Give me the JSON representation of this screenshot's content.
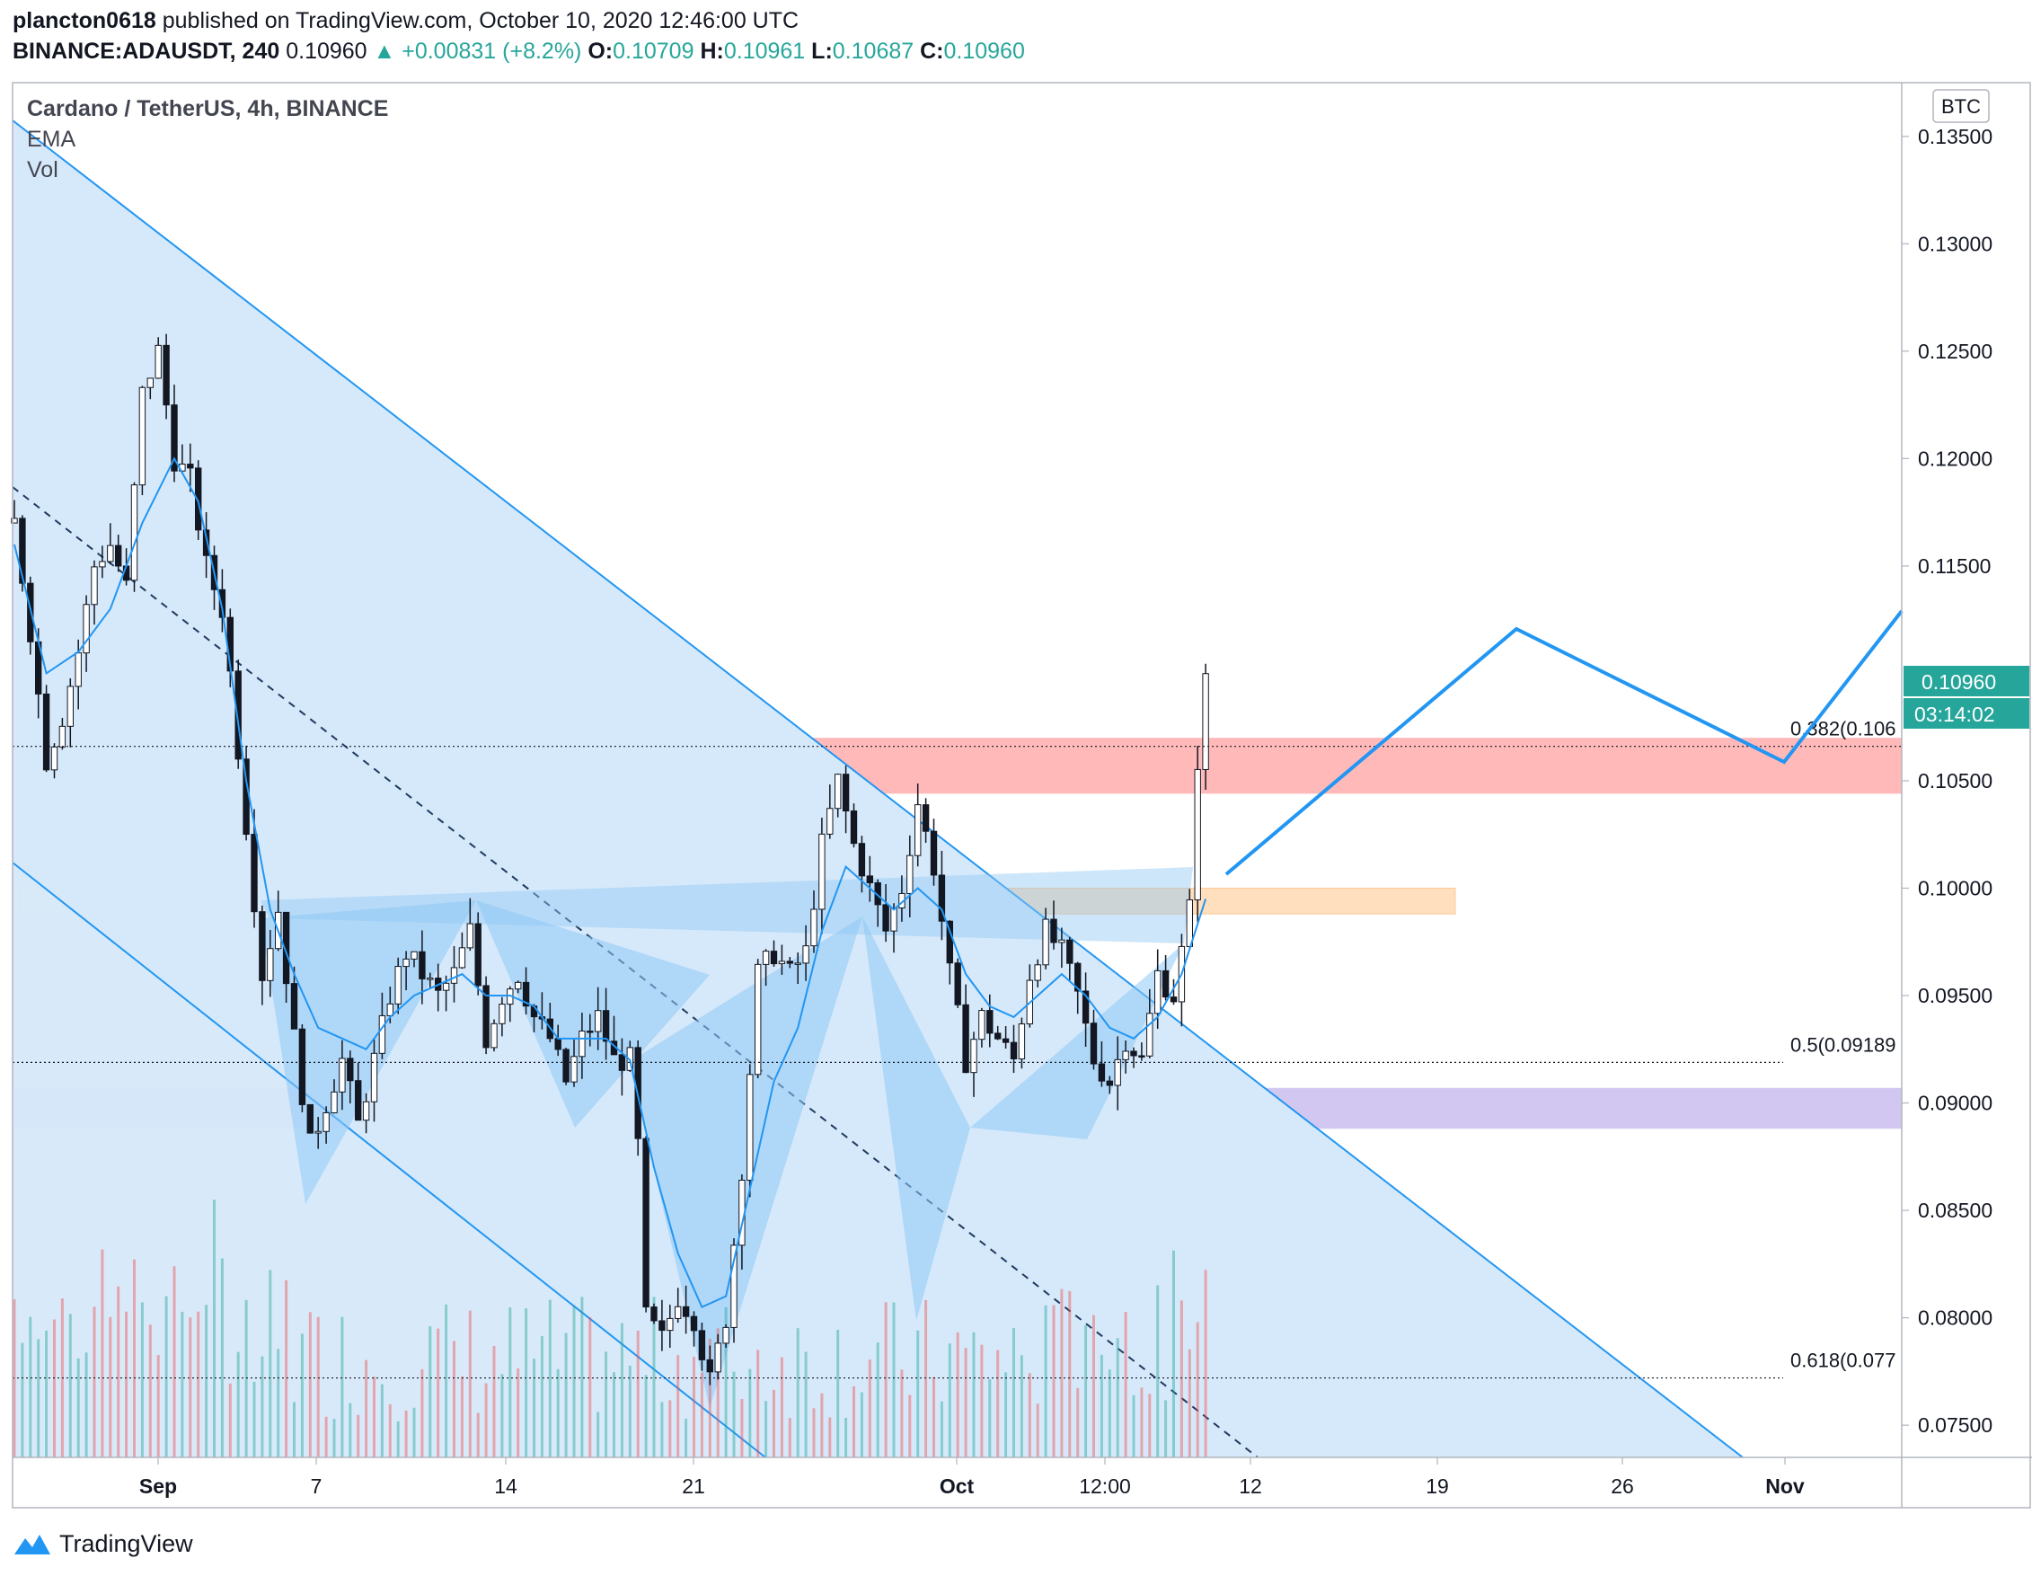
{
  "header": {
    "author": "plancton0618",
    "published": "published on TradingView.com, October 10, 2020 12:46:00 UTC",
    "symbol": "BINANCE:ADAUSDT, 240",
    "last": "0.10960",
    "change": "▲ +0.00831 (+8.2%)",
    "o_label": "O:",
    "o_value": "0.10709",
    "h_label": "H:",
    "h_value": "0.10961",
    "l_label": "L:",
    "l_value": "0.10687",
    "c_label": "C:",
    "c_value": "0.10960"
  },
  "legend": {
    "title": "Cardano / TetherUS, 4h, BINANCE",
    "ema": "EMA",
    "vol": "Vol"
  },
  "currency_button": "BTC",
  "price_label": "0.10960",
  "countdown_label": "03:14:02",
  "fib_labels": [
    "0.382(0.106",
    "0.5(0.09189",
    "0.618(0.077"
  ],
  "watermark": "TradingView",
  "colors": {
    "up": "#26a69a",
    "down": "#ef5350",
    "ema": "#2196f3",
    "channel_fill": "#d6e9fa",
    "resistance_zone": "#ff9b9b",
    "support_zone": "#c3b4ec",
    "orange_zone": "#ffd5a8",
    "projection": "#2196f3"
  },
  "chart_data": {
    "type": "candlestick",
    "symbol": "BINANCE:ADAUSDT",
    "timeframe": "4h",
    "price_axis": [
      "0.13500",
      "0.13000",
      "0.12500",
      "0.12000",
      "0.11500",
      "0.10500",
      "0.10000",
      "0.09500",
      "0.09000",
      "0.08500",
      "0.08000",
      "0.07500"
    ],
    "time_axis": [
      "Sep",
      "7",
      "14",
      "21",
      "Oct",
      "12:00",
      "12",
      "19",
      "26",
      "Nov"
    ],
    "ylim": [
      0.0735,
      0.1375
    ],
    "ohlc_close_path": [
      [
        0,
        0.117
      ],
      [
        2,
        0.112
      ],
      [
        4,
        0.106
      ],
      [
        6,
        0.108
      ],
      [
        8,
        0.111
      ],
      [
        10,
        0.115
      ],
      [
        12,
        0.116
      ],
      [
        14,
        0.114
      ],
      [
        16,
        0.123
      ],
      [
        18,
        0.125
      ],
      [
        20,
        0.12
      ],
      [
        22,
        0.119
      ],
      [
        24,
        0.115
      ],
      [
        26,
        0.113
      ],
      [
        27,
        0.11
      ],
      [
        29,
        0.103
      ],
      [
        31,
        0.096
      ],
      [
        33,
        0.099
      ],
      [
        35,
        0.093
      ],
      [
        37,
        0.088
      ],
      [
        39,
        0.09
      ],
      [
        41,
        0.092
      ],
      [
        43,
        0.089
      ],
      [
        45,
        0.092
      ],
      [
        47,
        0.095
      ],
      [
        49,
        0.097
      ],
      [
        51,
        0.096
      ],
      [
        53,
        0.095
      ],
      [
        55,
        0.096
      ],
      [
        57,
        0.098
      ],
      [
        59,
        0.093
      ],
      [
        61,
        0.095
      ],
      [
        63,
        0.096
      ],
      [
        65,
        0.094
      ],
      [
        67,
        0.093
      ],
      [
        69,
        0.091
      ],
      [
        71,
        0.093
      ],
      [
        73,
        0.094
      ],
      [
        75,
        0.092
      ],
      [
        77,
        0.092
      ],
      [
        78,
        0.088
      ],
      [
        79,
        0.08
      ],
      [
        81,
        0.079
      ],
      [
        83,
        0.081
      ],
      [
        85,
        0.08
      ],
      [
        87,
        0.077
      ],
      [
        89,
        0.08
      ],
      [
        91,
        0.087
      ],
      [
        93,
        0.096
      ],
      [
        95,
        0.097
      ],
      [
        97,
        0.096
      ],
      [
        99,
        0.097
      ],
      [
        101,
        0.102
      ],
      [
        103,
        0.105
      ],
      [
        105,
        0.102
      ],
      [
        107,
        0.1
      ],
      [
        109,
        0.098
      ],
      [
        111,
        0.1
      ],
      [
        113,
        0.104
      ],
      [
        115,
        0.101
      ],
      [
        117,
        0.096
      ],
      [
        119,
        0.092
      ],
      [
        121,
        0.094
      ],
      [
        123,
        0.093
      ],
      [
        125,
        0.092
      ],
      [
        127,
        0.096
      ],
      [
        129,
        0.098
      ],
      [
        131,
        0.097
      ],
      [
        133,
        0.095
      ],
      [
        135,
        0.092
      ],
      [
        137,
        0.091
      ],
      [
        139,
        0.093
      ],
      [
        141,
        0.092
      ],
      [
        143,
        0.096
      ],
      [
        145,
        0.095
      ],
      [
        147,
        0.099
      ],
      [
        148,
        0.106
      ],
      [
        149,
        0.1096
      ]
    ],
    "ema_path": [
      [
        0,
        0.116
      ],
      [
        4,
        0.11
      ],
      [
        8,
        0.111
      ],
      [
        12,
        0.113
      ],
      [
        16,
        0.117
      ],
      [
        20,
        0.12
      ],
      [
        23,
        0.118
      ],
      [
        26,
        0.113
      ],
      [
        29,
        0.105
      ],
      [
        32,
        0.099
      ],
      [
        35,
        0.096
      ],
      [
        38,
        0.0935
      ],
      [
        41,
        0.093
      ],
      [
        44,
        0.0925
      ],
      [
        47,
        0.094
      ],
      [
        50,
        0.095
      ],
      [
        53,
        0.0955
      ],
      [
        56,
        0.096
      ],
      [
        59,
        0.095
      ],
      [
        62,
        0.095
      ],
      [
        65,
        0.0945
      ],
      [
        68,
        0.093
      ],
      [
        71,
        0.093
      ],
      [
        74,
        0.093
      ],
      [
        77,
        0.092
      ],
      [
        80,
        0.087
      ],
      [
        83,
        0.083
      ],
      [
        86,
        0.0805
      ],
      [
        89,
        0.081
      ],
      [
        92,
        0.086
      ],
      [
        95,
        0.091
      ],
      [
        98,
        0.0935
      ],
      [
        101,
        0.098
      ],
      [
        104,
        0.101
      ],
      [
        107,
        0.1
      ],
      [
        110,
        0.099
      ],
      [
        113,
        0.1
      ],
      [
        116,
        0.099
      ],
      [
        119,
        0.096
      ],
      [
        122,
        0.0945
      ],
      [
        125,
        0.094
      ],
      [
        128,
        0.095
      ],
      [
        131,
        0.096
      ],
      [
        134,
        0.095
      ],
      [
        137,
        0.0935
      ],
      [
        140,
        0.093
      ],
      [
        143,
        0.094
      ],
      [
        146,
        0.096
      ],
      [
        149,
        0.0995
      ]
    ],
    "zones": [
      {
        "name": "resistance",
        "from": 0.1044,
        "to": 0.107
      },
      {
        "name": "orange",
        "from": 0.0988,
        "to": 0.1
      },
      {
        "name": "support",
        "from": 0.0888,
        "to": 0.0907
      }
    ],
    "fibonacci": [
      {
        "level": "0.382",
        "price": 0.1066
      },
      {
        "level": "0.5",
        "price": 0.09189
      },
      {
        "level": "0.618",
        "price": 0.0772
      }
    ],
    "last_price": 0.1096
  }
}
